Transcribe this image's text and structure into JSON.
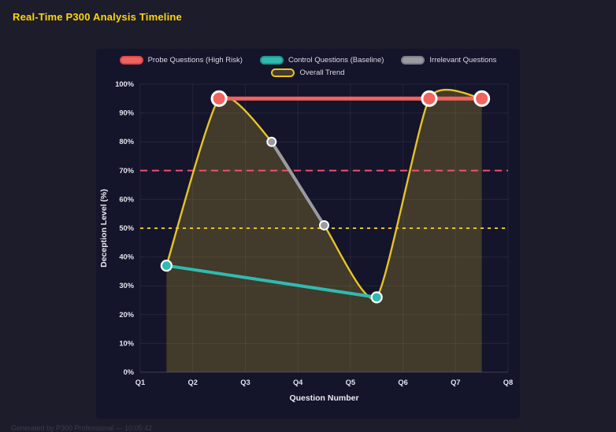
{
  "page": {
    "title": "Real-Time P300 Analysis Timeline",
    "footer": "Generated by P300 Professional — 10:05:42"
  },
  "colors": {
    "probe": "#f2635f",
    "probe_border": "#d94848",
    "control": "#2fbbb0",
    "control_border": "#23968d",
    "irrelevant": "#9a9aa2",
    "irrelevant_border": "#7e7e88",
    "trend": "#e6c427",
    "trend_fill": "rgba(230,196,39,0.22)",
    "threshold_high": "#ef4f6e",
    "threshold_mid": "#e3c425",
    "point_ring": "#ffffff",
    "grid": "rgba(255,255,255,0.07)",
    "axis_text": "#e4e4ee"
  },
  "legend": {
    "rows": [
      [
        {
          "key": "probe",
          "label": "Probe Questions (High Risk)"
        },
        {
          "key": "control",
          "label": "Control Questions (Baseline)"
        },
        {
          "key": "irrelevant",
          "label": "Irrelevant Questions"
        }
      ],
      [
        {
          "key": "trend",
          "label": "Overall Trend"
        }
      ]
    ]
  },
  "chart_data": {
    "type": "line",
    "title": "Real-Time P300 Analysis Timeline",
    "xlabel": "Question Number",
    "ylabel": "Deception Level (%)",
    "x_ticks": [
      "Q1",
      "Q2",
      "Q3",
      "Q4",
      "Q5",
      "Q6",
      "Q7",
      "Q8"
    ],
    "x_range": [
      1,
      8
    ],
    "ylim": [
      0,
      100
    ],
    "y_tick_step": 10,
    "y_ticks": [
      "0%",
      "10%",
      "20%",
      "30%",
      "40%",
      "50%",
      "60%",
      "70%",
      "80%",
      "90%",
      "100%"
    ],
    "grid": true,
    "legend_position": "top",
    "series": [
      {
        "name": "Overall Trend",
        "render": "spline-area",
        "color_key": "trend",
        "width": 2.4,
        "points": [
          [
            1.5,
            37
          ],
          [
            2.5,
            95
          ],
          [
            3.5,
            80
          ],
          [
            4.5,
            51
          ],
          [
            5.5,
            26
          ],
          [
            6.5,
            95
          ],
          [
            7.5,
            95
          ]
        ]
      },
      {
        "name": "Irrelevant Questions",
        "render": "line",
        "color_key": "irrelevant",
        "width": 4,
        "point_radius": 5.5,
        "ring_width": 2,
        "points": [
          [
            3.5,
            80
          ],
          [
            4.5,
            51
          ]
        ]
      },
      {
        "name": "Control Questions (Baseline)",
        "render": "line",
        "color_key": "control",
        "width": 4,
        "point_radius": 6.5,
        "ring_width": 2.2,
        "points": [
          [
            1.5,
            37
          ],
          [
            5.5,
            26
          ]
        ]
      },
      {
        "name": "Probe Questions (High Risk)",
        "render": "line",
        "color_key": "probe",
        "width": 5,
        "point_radius": 9,
        "ring_width": 3,
        "points": [
          [
            2.5,
            95
          ],
          [
            6.5,
            95
          ],
          [
            7.5,
            95
          ]
        ]
      }
    ],
    "thresholds": [
      {
        "value": 70,
        "color_key": "threshold_high",
        "dash": "9 6",
        "width": 2
      },
      {
        "value": 50,
        "color_key": "threshold_mid",
        "dash": "4 5",
        "width": 2
      }
    ]
  }
}
